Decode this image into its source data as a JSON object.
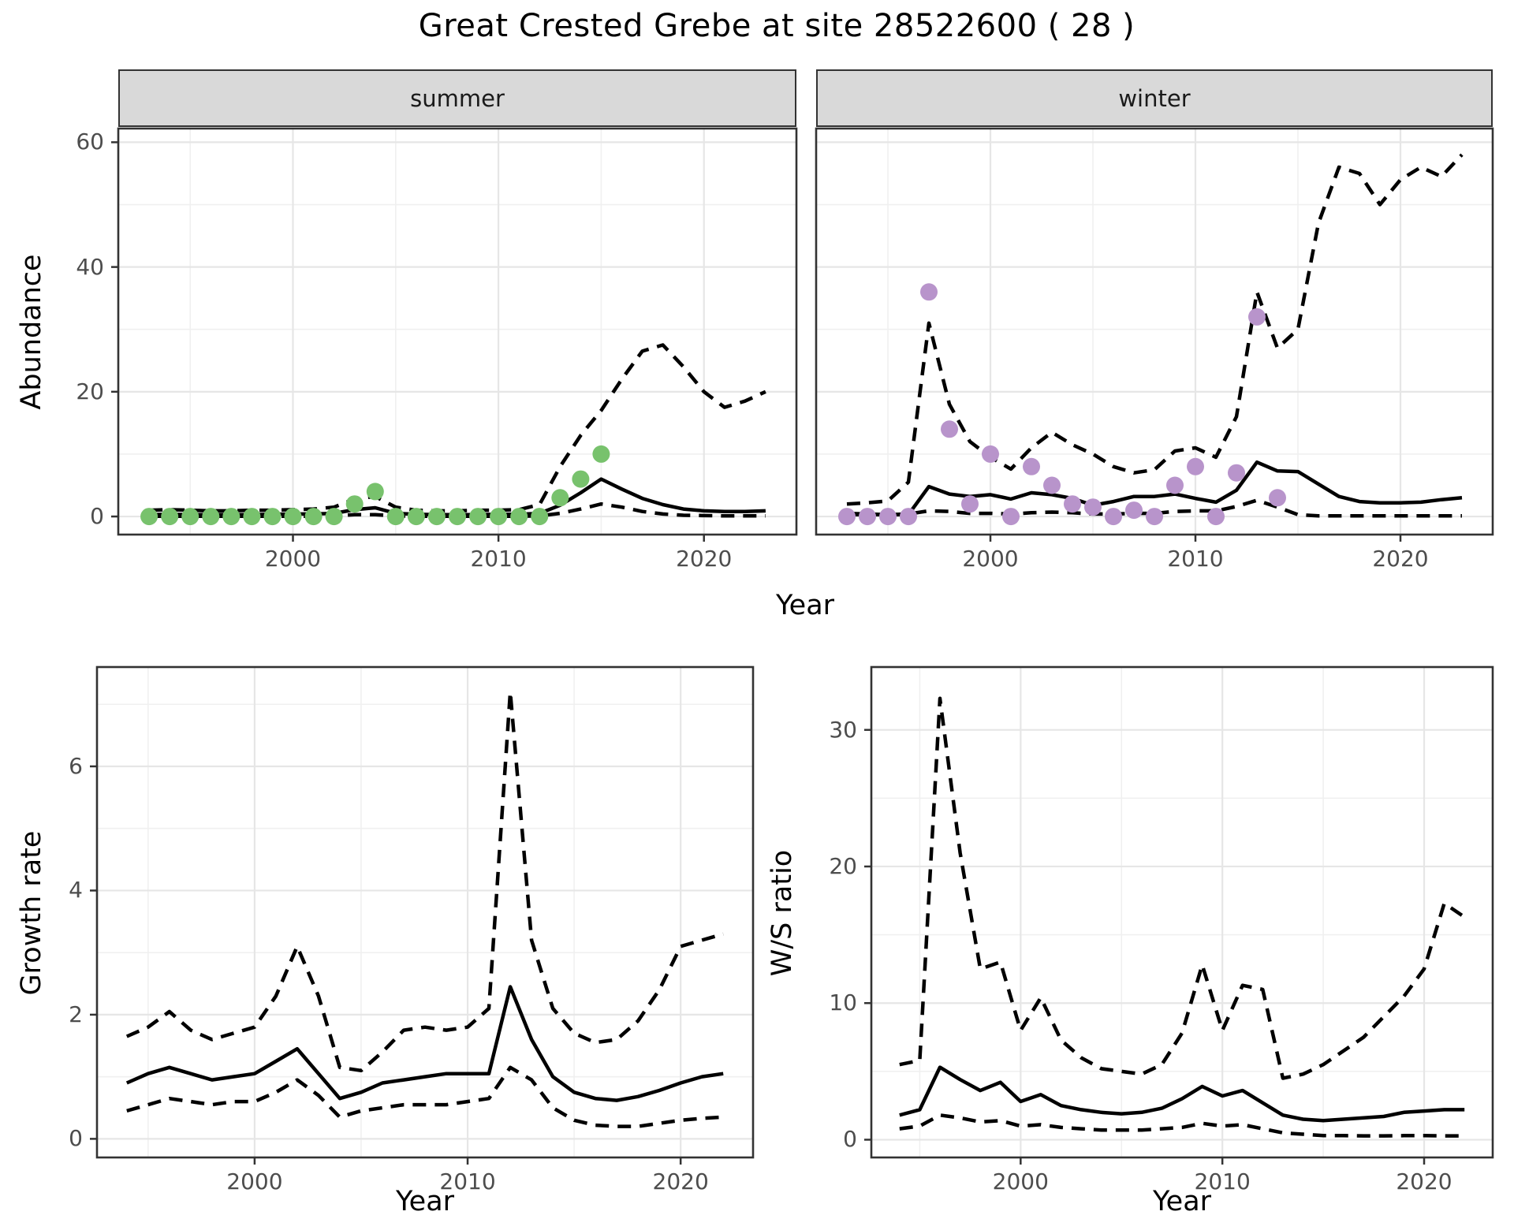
{
  "title": "Great Crested Grebe at site 28522600 ( 28 )",
  "chart_data": {
    "type": "line",
    "title": "Great Crested Grebe at site 28522600 ( 28 )",
    "legend": "none",
    "line_color": "#000000",
    "ci_style": "dashed",
    "median_style": "solid",
    "colors": {
      "summer_points": "#78c26d",
      "winter_points": "#b894cb",
      "strip_background": "#d9d9d9",
      "major_grid": "#e6e6e6",
      "minor_grid": "#f0f0f0",
      "panel_border": "#333333",
      "tick_text": "#4d4d4d"
    },
    "figures": {
      "abundance": {
        "ylabel": "Abundance",
        "xlabel": "Year",
        "xticks": [
          2000,
          2010,
          2020
        ],
        "yticks": [
          0,
          20,
          40,
          60
        ],
        "xlim": [
          1991.5,
          2024.5
        ],
        "ylim": [
          -2.9,
          62.2
        ],
        "facets": [
          {
            "label": "summer",
            "point_color": "#78c26d",
            "years": [
              1993,
              1994,
              1995,
              1996,
              1997,
              1998,
              1999,
              2000,
              2001,
              2002,
              2003,
              2004,
              2005,
              2006,
              2007,
              2008,
              2009,
              2010,
              2011,
              2012,
              2013,
              2014,
              2015,
              2016,
              2017,
              2018,
              2019,
              2020,
              2021,
              2022,
              2023
            ],
            "median": [
              0.3,
              0.35,
              0.3,
              0.3,
              0.3,
              0.3,
              0.35,
              0.4,
              0.4,
              0.5,
              1.1,
              1.4,
              0.5,
              0.35,
              0.3,
              0.3,
              0.3,
              0.35,
              0.35,
              0.5,
              1.8,
              3.8,
              6.0,
              4.4,
              2.9,
              1.9,
              1.2,
              0.9,
              0.8,
              0.8,
              0.9
            ],
            "upper95": [
              1.0,
              1.1,
              1.0,
              0.9,
              0.9,
              1.0,
              1.0,
              1.1,
              1.2,
              1.5,
              2.8,
              3.2,
              1.5,
              1.0,
              0.9,
              0.9,
              1.0,
              1.0,
              1.1,
              1.9,
              8.0,
              13.0,
              17.0,
              22.0,
              26.5,
              27.5,
              24.0,
              20.0,
              17.5,
              18.5,
              20.0
            ],
            "lower95": [
              0.05,
              0.05,
              0.05,
              0.05,
              0.05,
              0.05,
              0.05,
              0.05,
              0.05,
              0.1,
              0.3,
              0.3,
              0.1,
              0.05,
              0.05,
              0.05,
              0.05,
              0.05,
              0.05,
              0.1,
              0.5,
              1.2,
              2.0,
              1.5,
              0.8,
              0.4,
              0.2,
              0.15,
              0.1,
              0.1,
              0.1
            ],
            "obs_years": [
              1993,
              1994,
              1995,
              1996,
              1997,
              1998,
              1999,
              2000,
              2001,
              2002,
              2003,
              2004,
              2005,
              2006,
              2007,
              2008,
              2009,
              2010,
              2011,
              2012,
              2013,
              2014,
              2015
            ],
            "obs_values": [
              0,
              0,
              0,
              0,
              0,
              0,
              0,
              0,
              0,
              0,
              2,
              4,
              0,
              0,
              0,
              0,
              0,
              0,
              0,
              0,
              3,
              6,
              10
            ]
          },
          {
            "label": "winter",
            "point_color": "#b894cb",
            "years": [
              1993,
              1994,
              1995,
              1996,
              1997,
              1998,
              1999,
              2000,
              2001,
              2002,
              2003,
              2004,
              2005,
              2006,
              2007,
              2008,
              2009,
              2010,
              2011,
              2012,
              2013,
              2014,
              2015,
              2016,
              2017,
              2018,
              2019,
              2020,
              2021,
              2022,
              2023
            ],
            "median": [
              0.5,
              0.4,
              0.3,
              0.3,
              4.8,
              3.6,
              3.2,
              3.5,
              2.8,
              3.8,
              3.5,
              2.9,
              1.8,
              2.4,
              3.2,
              3.2,
              3.6,
              2.9,
              2.3,
              4.2,
              8.7,
              7.3,
              7.2,
              5.2,
              3.2,
              2.4,
              2.2,
              2.2,
              2.3,
              2.7,
              3.0
            ],
            "upper95": [
              2.0,
              2.2,
              2.5,
              5.5,
              31.0,
              18.0,
              12.0,
              9.5,
              7.6,
              11.0,
              13.5,
              11.5,
              10.0,
              8.0,
              7.0,
              7.5,
              10.5,
              11.0,
              9.5,
              16.0,
              36.0,
              27.0,
              30.0,
              47.0,
              56.0,
              55.0,
              50.0,
              54.0,
              56.0,
              54.5,
              58.0
            ],
            "lower95": [
              0.3,
              0.3,
              0.3,
              0.4,
              0.9,
              0.8,
              0.5,
              0.5,
              0.4,
              0.6,
              0.7,
              0.6,
              0.4,
              0.4,
              0.5,
              0.5,
              0.8,
              0.9,
              0.9,
              1.6,
              2.6,
              1.5,
              0.3,
              0.1,
              0.1,
              0.1,
              0.1,
              0.1,
              0.1,
              0.1,
              0.1
            ],
            "obs_years": [
              1993,
              1994,
              1995,
              1996,
              1997,
              1998,
              1999,
              2000,
              2001,
              2002,
              2003,
              2004,
              2005,
              2006,
              2007,
              2008,
              2009,
              2010,
              2011,
              2012,
              2013,
              2014
            ],
            "obs_values": [
              0,
              0,
              0,
              0,
              36,
              14,
              2,
              10,
              0,
              8,
              5,
              2,
              1.5,
              0,
              1,
              0,
              5,
              8,
              0,
              7,
              32,
              3
            ]
          }
        ]
      },
      "growth_rate": {
        "ylabel": "Growth rate",
        "xlabel": "Year",
        "xticks": [
          2000,
          2010,
          2020
        ],
        "yticks": [
          0,
          2,
          4,
          6
        ],
        "xlim": [
          1992.6,
          2023.4
        ],
        "ylim": [
          -0.3,
          7.6
        ],
        "years": [
          1994,
          1995,
          1996,
          1997,
          1998,
          1999,
          2000,
          2001,
          2002,
          2003,
          2004,
          2005,
          2006,
          2007,
          2008,
          2009,
          2010,
          2011,
          2012,
          2013,
          2014,
          2015,
          2016,
          2017,
          2018,
          2019,
          2020,
          2021,
          2022
        ],
        "median": [
          0.9,
          1.05,
          1.15,
          1.05,
          0.95,
          1.0,
          1.05,
          1.25,
          1.45,
          1.05,
          0.65,
          0.75,
          0.9,
          0.95,
          1.0,
          1.05,
          1.05,
          1.05,
          2.45,
          1.6,
          1.0,
          0.75,
          0.65,
          0.62,
          0.68,
          0.78,
          0.9,
          1.0,
          1.05
        ],
        "upper95": [
          1.65,
          1.8,
          2.05,
          1.75,
          1.6,
          1.7,
          1.8,
          2.3,
          3.1,
          2.3,
          1.15,
          1.1,
          1.4,
          1.75,
          1.8,
          1.75,
          1.8,
          2.1,
          7.2,
          3.2,
          2.1,
          1.7,
          1.55,
          1.6,
          1.9,
          2.4,
          3.1,
          3.2,
          3.3
        ],
        "lower95": [
          0.45,
          0.55,
          0.65,
          0.6,
          0.55,
          0.6,
          0.6,
          0.75,
          0.95,
          0.7,
          0.35,
          0.45,
          0.5,
          0.55,
          0.55,
          0.55,
          0.6,
          0.65,
          1.15,
          0.95,
          0.5,
          0.3,
          0.22,
          0.2,
          0.2,
          0.25,
          0.3,
          0.33,
          0.35
        ]
      },
      "ws_ratio": {
        "ylabel": "W/S ratio",
        "xlabel": "Year",
        "xticks": [
          2000,
          2010,
          2020
        ],
        "yticks": [
          0,
          10,
          20,
          30
        ],
        "xlim": [
          1992.6,
          2023.4
        ],
        "ylim": [
          -1.3,
          34.6
        ],
        "years": [
          1994,
          1995,
          1996,
          1997,
          1998,
          1999,
          2000,
          2001,
          2002,
          2003,
          2004,
          2005,
          2006,
          2007,
          2008,
          2009,
          2010,
          2011,
          2012,
          2013,
          2014,
          2015,
          2016,
          2017,
          2018,
          2019,
          2020,
          2021,
          2022
        ],
        "median": [
          1.8,
          2.2,
          5.3,
          4.4,
          3.6,
          4.2,
          2.8,
          3.3,
          2.5,
          2.2,
          2.0,
          1.9,
          2.0,
          2.3,
          3.0,
          3.9,
          3.2,
          3.6,
          2.7,
          1.8,
          1.5,
          1.4,
          1.5,
          1.6,
          1.7,
          2.0,
          2.1,
          2.2,
          2.2
        ],
        "upper95": [
          5.5,
          5.8,
          32.3,
          21.0,
          12.5,
          13.0,
          8.0,
          10.4,
          7.3,
          6.0,
          5.2,
          5.0,
          4.8,
          5.5,
          7.8,
          12.8,
          8.0,
          11.3,
          11.0,
          4.5,
          4.8,
          5.5,
          6.5,
          7.5,
          9.0,
          10.5,
          12.5,
          17.3,
          16.3
        ],
        "lower95": [
          0.8,
          1.0,
          1.8,
          1.6,
          1.3,
          1.4,
          1.0,
          1.1,
          0.9,
          0.8,
          0.7,
          0.7,
          0.7,
          0.8,
          0.9,
          1.2,
          1.0,
          1.1,
          0.8,
          0.5,
          0.4,
          0.3,
          0.3,
          0.28,
          0.28,
          0.3,
          0.3,
          0.28,
          0.28
        ]
      }
    }
  }
}
